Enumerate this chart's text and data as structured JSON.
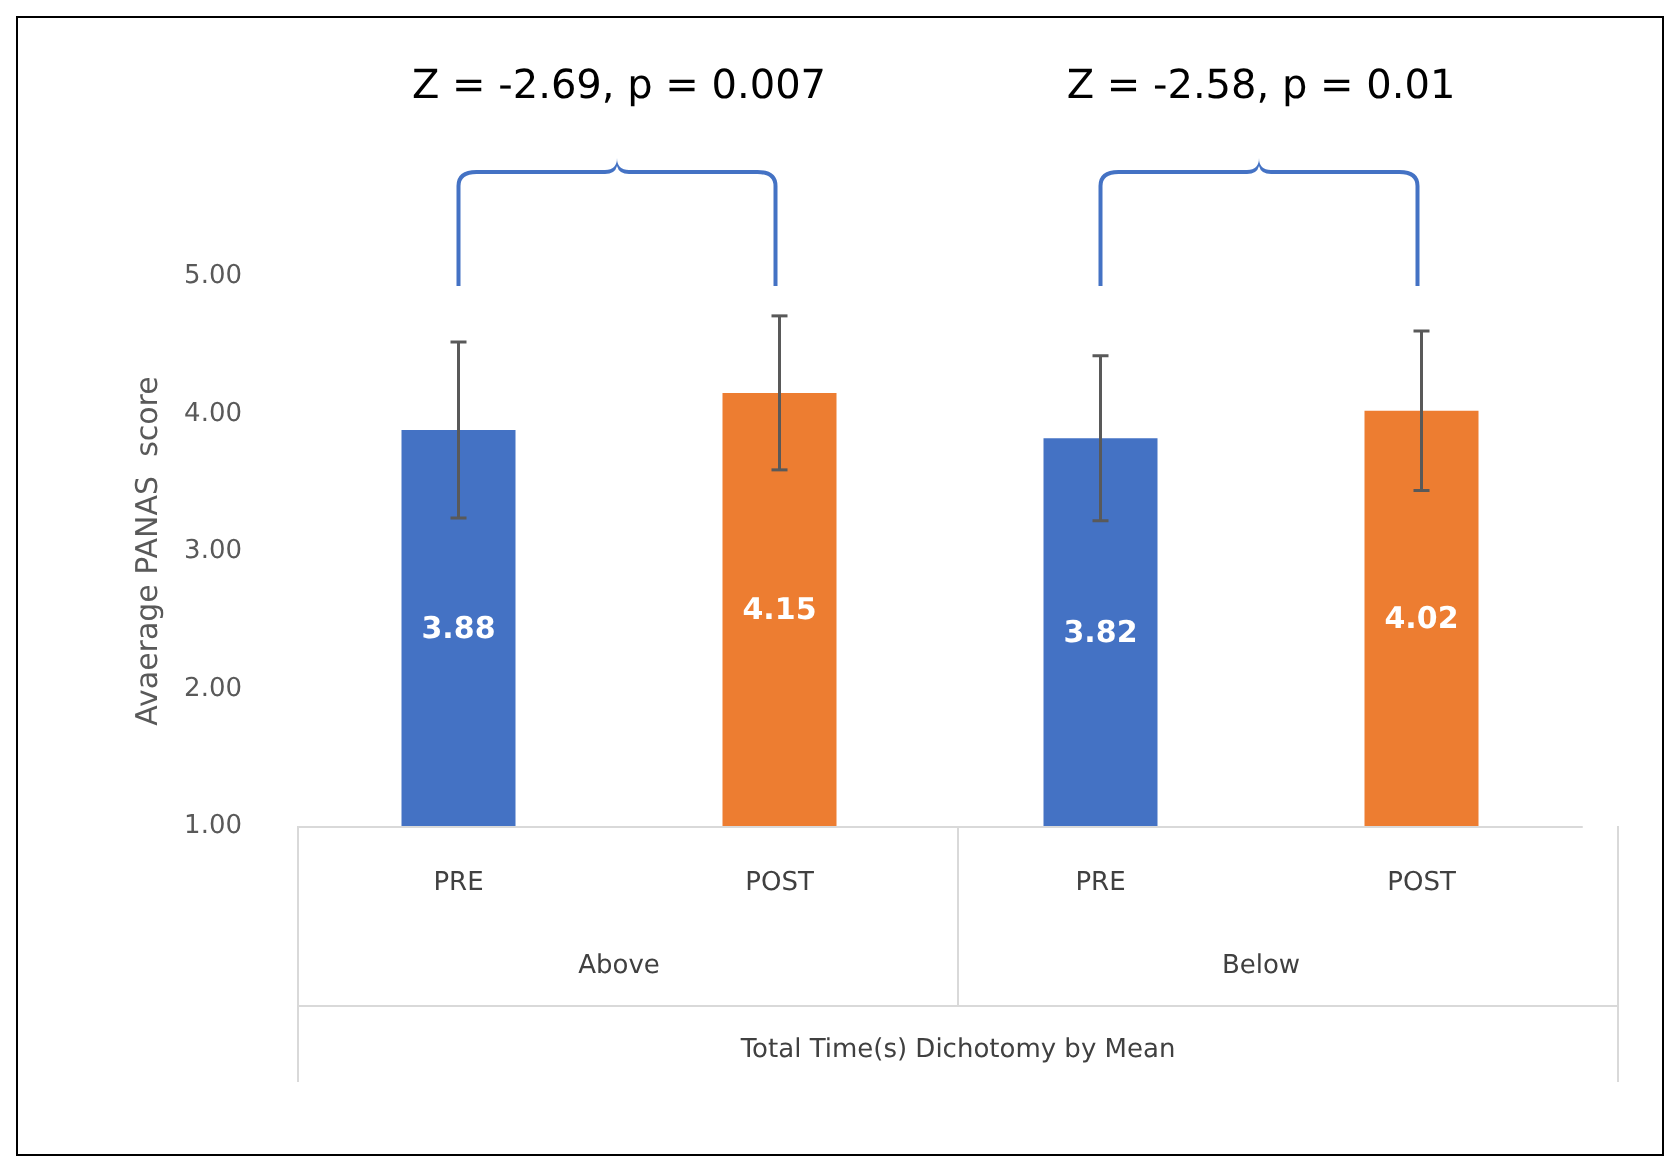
{
  "chart_data": {
    "type": "bar",
    "categories": [
      "PRE",
      "POST",
      "PRE",
      "POST"
    ],
    "values": [
      3.88,
      4.15,
      3.82,
      4.02
    ],
    "colors": [
      "#4472c4",
      "#ed7d31",
      "#4472c4",
      "#ed7d31"
    ],
    "errors": [
      0.64,
      0.56,
      0.6,
      0.58
    ],
    "data_labels": true,
    "ylim": [
      1,
      5
    ],
    "yticks": [
      {
        "value": 1,
        "label": "1.00"
      },
      {
        "value": 2,
        "label": "2.00"
      },
      {
        "value": 3,
        "label": "3.00"
      },
      {
        "value": 4,
        "label": "4.00"
      },
      {
        "value": 5,
        "label": "5.00"
      }
    ],
    "ylabel": "Avaerage PANAS  score",
    "annotations": [
      "Above",
      "Below",
      "Z = -2.69, p = 0.007",
      "Z = -2.58, p = 0.01",
      "Total Time(s) Dichotomy by Mean"
    ]
  }
}
